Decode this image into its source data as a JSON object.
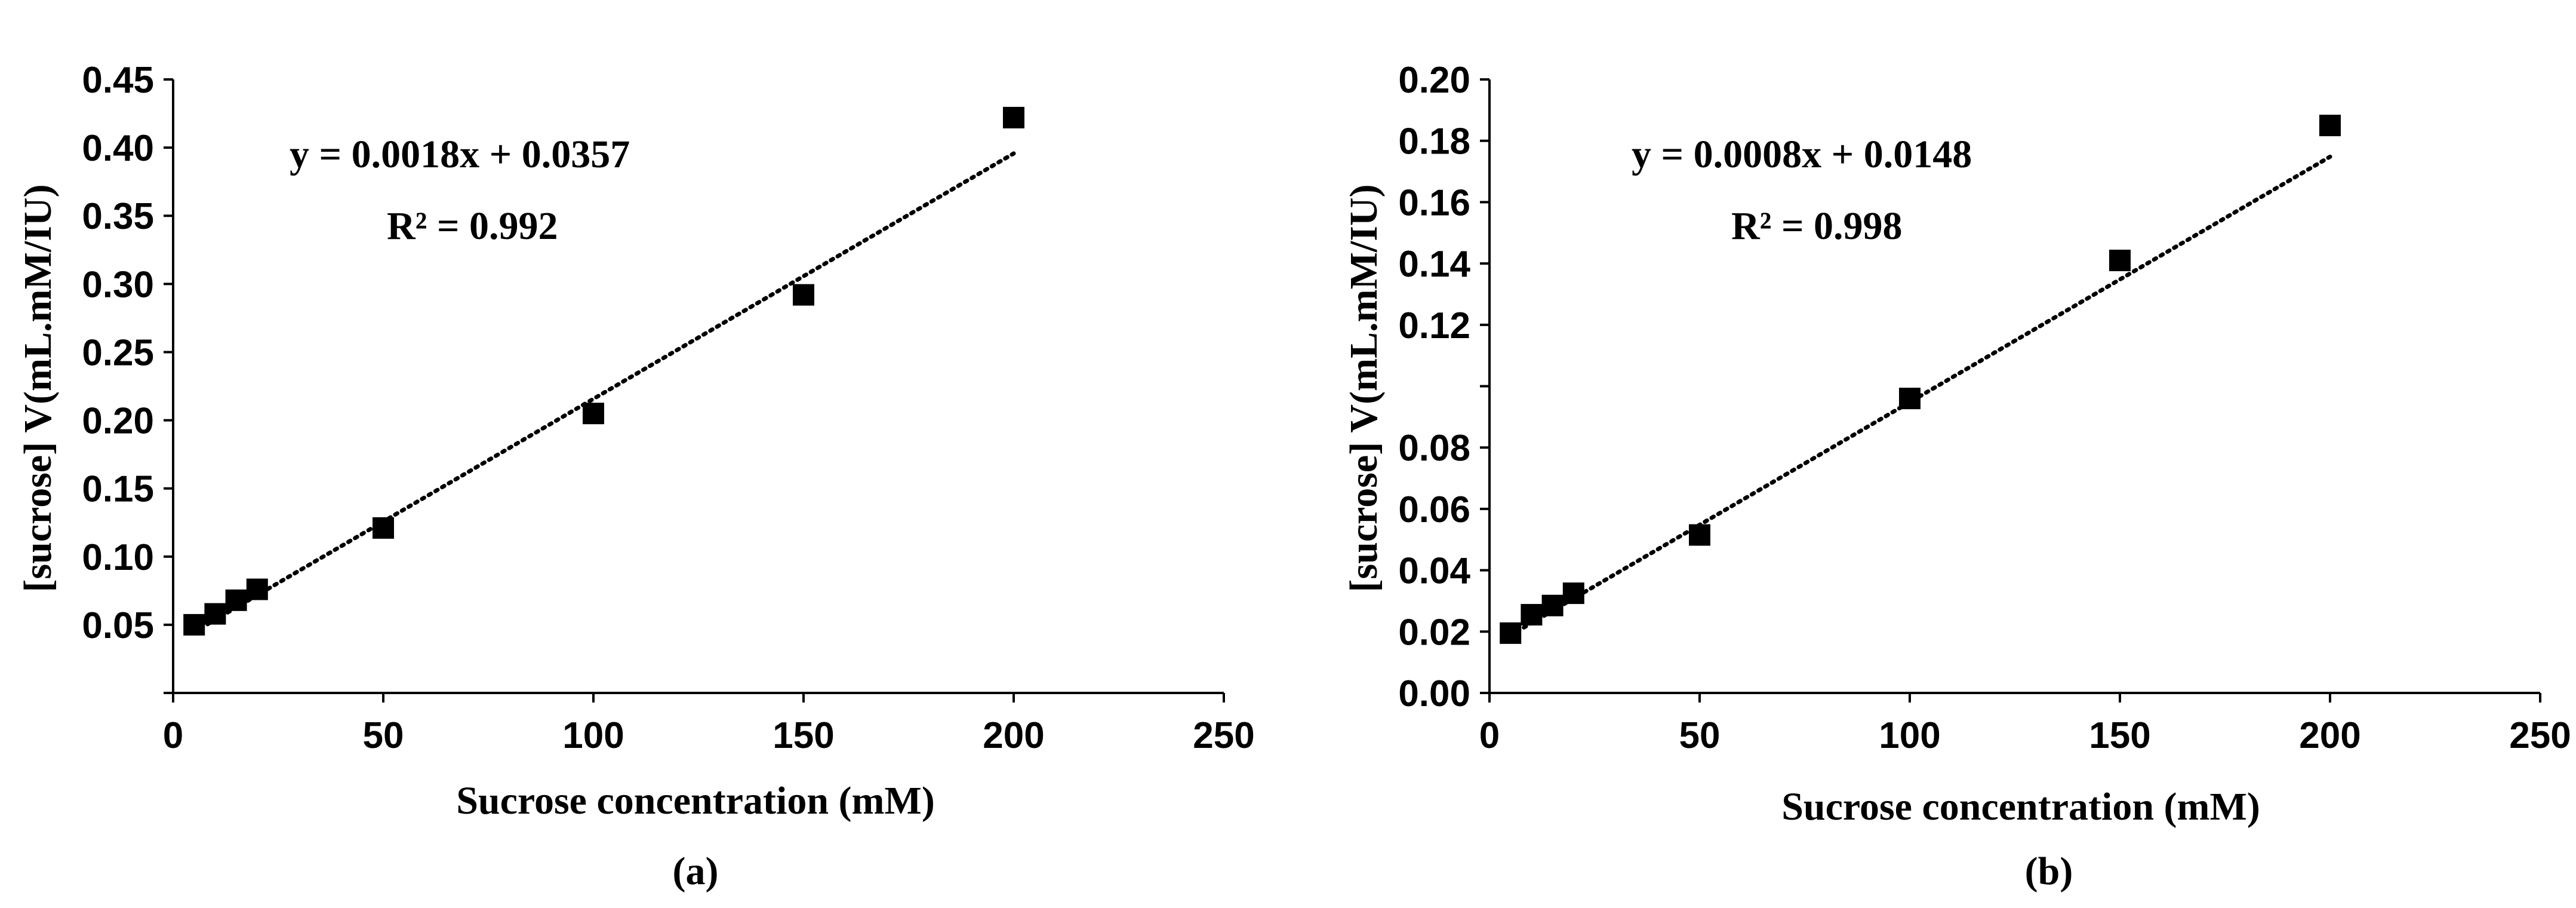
{
  "chart_data": [
    {
      "type": "scatter",
      "panel_label": "(a)",
      "title": "",
      "xlabel": "Sucrose concentration (mM)",
      "ylabel": "[sucrose] V(mL.mM/IU)",
      "xlim": [
        0,
        250
      ],
      "ylim": [
        0,
        0.45
      ],
      "x_ticks": [
        "0",
        "50",
        "100",
        "150",
        "200",
        "250"
      ],
      "y_ticks": [
        "0.05",
        "0.10",
        "0.15",
        "0.20",
        "0.25",
        "0.30",
        "0.35",
        "0.40",
        "0.45"
      ],
      "points": [
        {
          "x": 5,
          "y": 0.05
        },
        {
          "x": 10,
          "y": 0.058
        },
        {
          "x": 15,
          "y": 0.068
        },
        {
          "x": 20,
          "y": 0.076
        },
        {
          "x": 50,
          "y": 0.121
        },
        {
          "x": 100,
          "y": 0.205
        },
        {
          "x": 150,
          "y": 0.292
        },
        {
          "x": 200,
          "y": 0.422
        }
      ],
      "trendline": {
        "slope": 0.0018,
        "intercept": 0.0357,
        "x_range": [
          5,
          200
        ]
      },
      "equation": "y = 0.0018x + 0.0357",
      "r_squared": "R² = 0.992",
      "grid": false,
      "legend": "none"
    },
    {
      "type": "scatter",
      "panel_label": "(b)",
      "title": "",
      "xlabel": "Sucrose concentration (mM)",
      "ylabel": "[sucrose] V(mL.mM/IU)",
      "xlim": [
        0,
        250
      ],
      "ylim": [
        0,
        0.2
      ],
      "x_ticks": [
        "0",
        "50",
        "100",
        "150",
        "200",
        "250"
      ],
      "y_ticks": [
        "0.00",
        "0.02",
        "0.04",
        "0.06",
        "0.08",
        "",
        "0.12",
        "0.14",
        "0.16",
        "0.18",
        "0.20"
      ],
      "points": [
        {
          "x": 5,
          "y": 0.0195
        },
        {
          "x": 10,
          "y": 0.0255
        },
        {
          "x": 15,
          "y": 0.0285
        },
        {
          "x": 20,
          "y": 0.0325
        },
        {
          "x": 50,
          "y": 0.0515
        },
        {
          "x": 100,
          "y": 0.096
        },
        {
          "x": 150,
          "y": 0.141
        },
        {
          "x": 200,
          "y": 0.185
        }
      ],
      "trendline": {
        "slope": 0.0008,
        "intercept": 0.0148,
        "x_range": [
          5,
          200
        ]
      },
      "equation": "y = 0.0008x + 0.0148",
      "r_squared": "R² = 0.998",
      "grid": false,
      "legend": "none"
    }
  ]
}
